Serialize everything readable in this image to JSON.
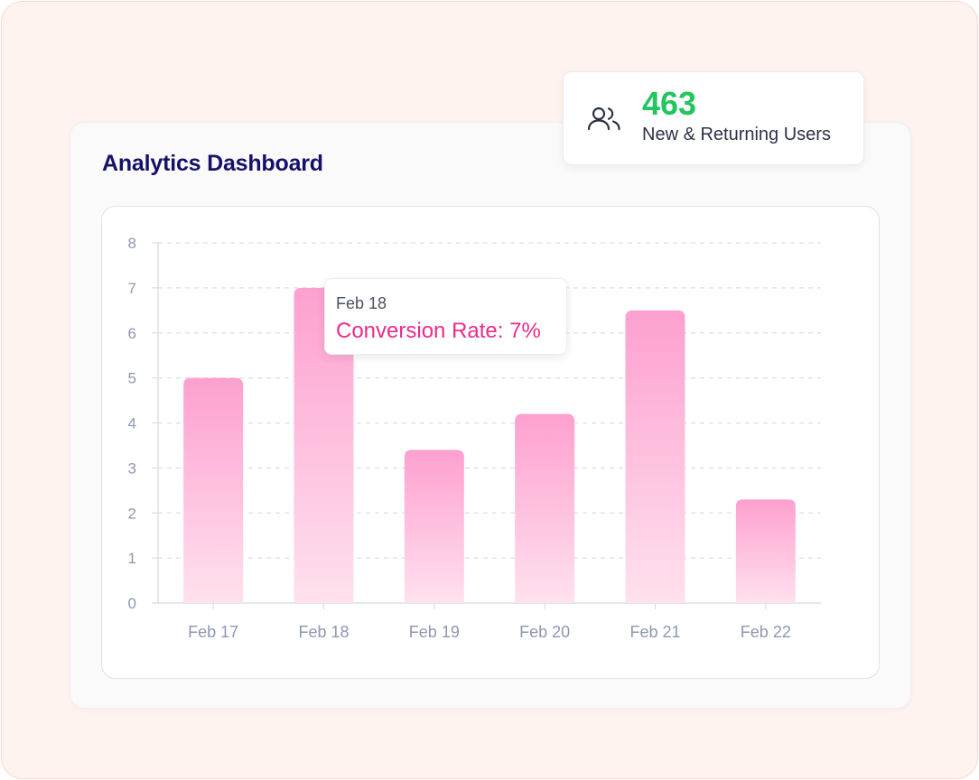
{
  "dashboard": {
    "title": "Analytics Dashboard"
  },
  "stat_card": {
    "icon": "users-icon",
    "value": "463",
    "label": "New & Returning Users",
    "value_color": "#22c55e"
  },
  "tooltip": {
    "date": "Feb 18",
    "value_text": "Conversion Rate: 7%",
    "value_color": "#ee2a8a"
  },
  "colors": {
    "bar_top": "#fda0cf",
    "bar_bottom": "#ffe1ee",
    "grid": "#d9dde8",
    "tick_text": "#8e97b2",
    "title": "#15116b"
  },
  "chart_data": {
    "type": "bar",
    "categories": [
      "Feb 17",
      "Feb 18",
      "Feb 19",
      "Feb 20",
      "Feb 21",
      "Feb 22"
    ],
    "values": [
      5,
      7,
      3.4,
      4.2,
      6.5,
      2.3
    ],
    "y_ticks": [
      "0",
      "1",
      "2",
      "3",
      "4",
      "5",
      "6",
      "7",
      "8"
    ],
    "ylim": [
      0,
      8
    ],
    "grid": true,
    "title": "",
    "xlabel": "",
    "ylabel": ""
  }
}
